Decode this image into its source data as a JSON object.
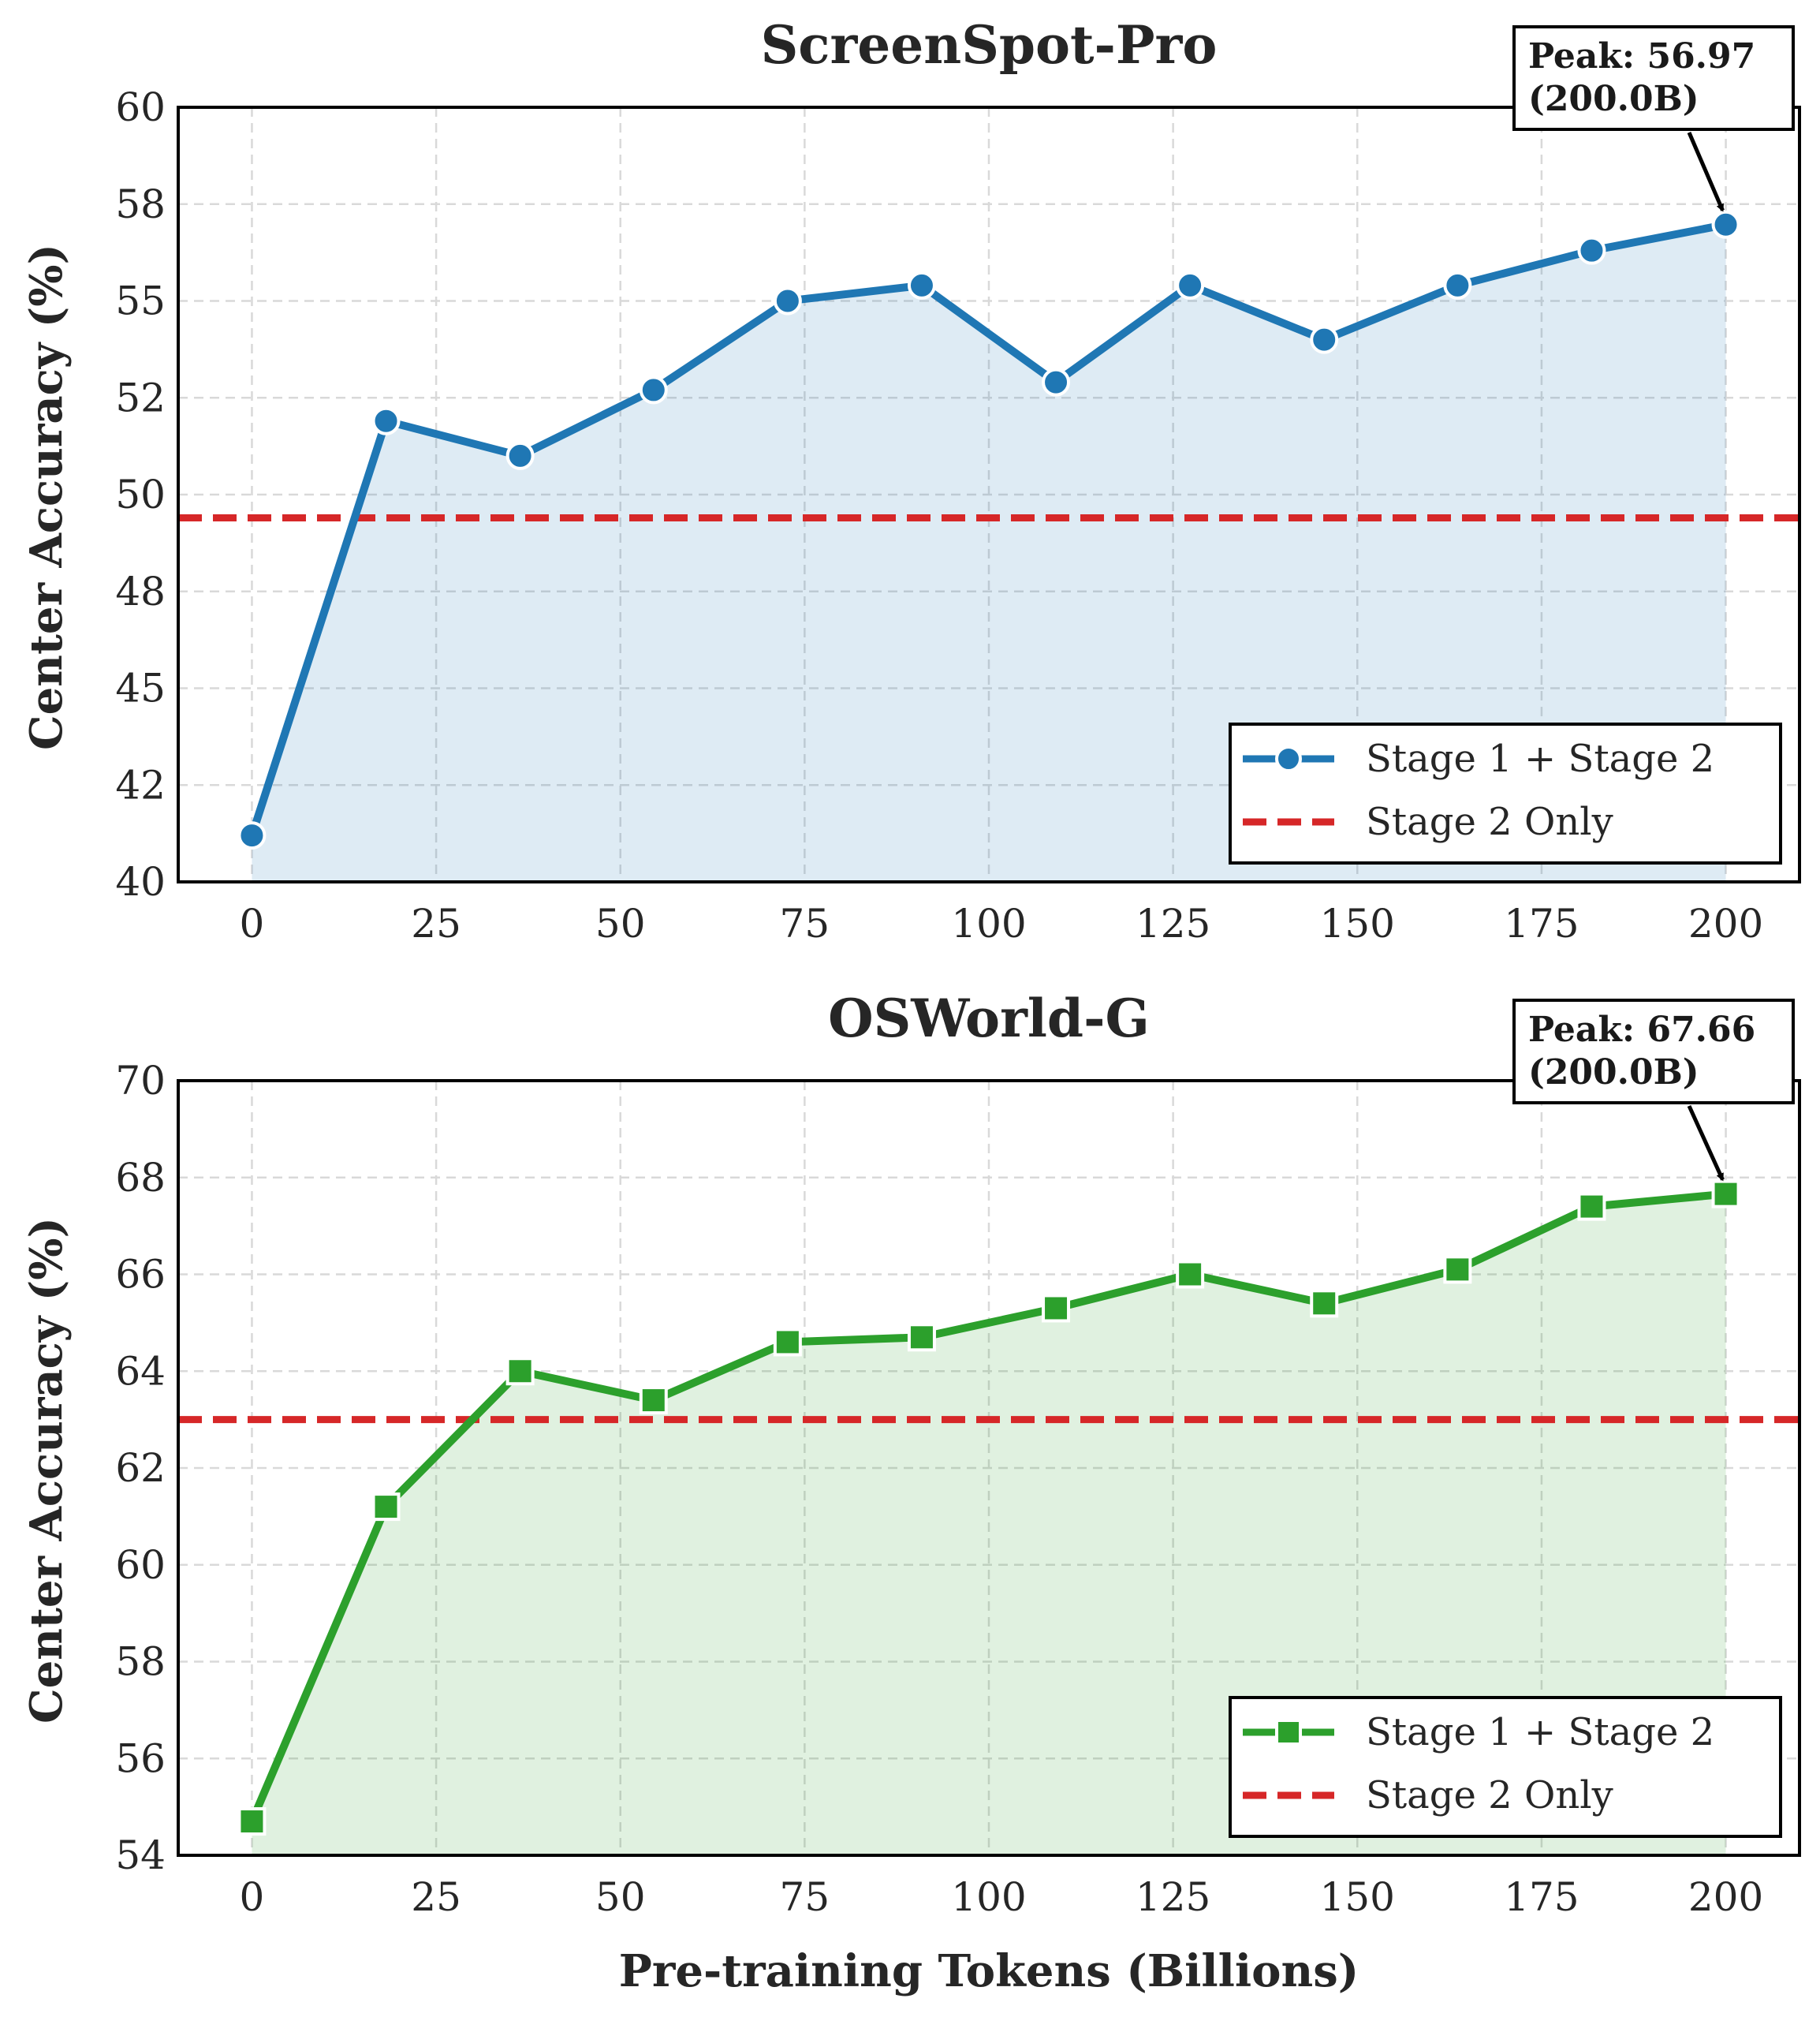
{
  "colors": {
    "series_1": "#1f77b4",
    "series_2": "#2ca02c",
    "baseline": "#d62728",
    "grid": "#d9d9d9",
    "text": "#262626"
  },
  "figure": {
    "xlabel": "Pre-training Tokens (Billions)"
  },
  "legend": {
    "series_label": "Stage 1 + Stage 2",
    "baseline_label": "Stage 2 Only",
    "placement": "lower-right"
  },
  "chart_data": [
    {
      "type": "line",
      "title": "ScreenSpot-Pro",
      "ylabel": "Center Accuracy (%)",
      "xlabel": "Pre-training Tokens (Billions)",
      "xlim": [
        -10,
        210
      ],
      "ylim": [
        40,
        60
      ],
      "x_ticks": [
        0,
        25,
        50,
        75,
        100,
        125,
        150,
        175,
        200
      ],
      "y_ticks": [
        40,
        42.5,
        45,
        47.5,
        50,
        52.5,
        55,
        57.5,
        60
      ],
      "y_tick_labels": [
        "40",
        "42",
        "45",
        "48",
        "50",
        "52",
        "55",
        "58",
        "60"
      ],
      "grid": true,
      "fill_under": true,
      "legend_placement": "lower-right",
      "series": [
        {
          "name": "Stage 1 + Stage 2",
          "marker": "circle",
          "color": "#1f77b4",
          "x": [
            0,
            18.2,
            36.4,
            54.5,
            72.7,
            90.9,
            109.1,
            127.3,
            145.5,
            163.6,
            181.8,
            200
          ],
          "y": [
            41.2,
            51.9,
            51.0,
            52.7,
            55.0,
            55.4,
            52.9,
            55.4,
            54.0,
            55.4,
            56.3,
            56.97
          ]
        }
      ],
      "baseline": {
        "name": "Stage 2 Only",
        "style": "dashed",
        "color": "#d62728",
        "y": 49.4
      },
      "annotation": {
        "line1": "Peak: 56.97",
        "line2": "(200.0B)",
        "x": 200,
        "y": 56.97
      }
    },
    {
      "type": "line",
      "title": "OSWorld-G",
      "ylabel": "Center Accuracy (%)",
      "xlabel": "Pre-training Tokens (Billions)",
      "xlim": [
        -10,
        210
      ],
      "ylim": [
        54,
        70
      ],
      "x_ticks": [
        0,
        25,
        50,
        75,
        100,
        125,
        150,
        175,
        200
      ],
      "y_ticks": [
        54,
        56,
        58,
        60,
        62,
        64,
        66,
        68,
        70
      ],
      "y_tick_labels": [
        "54",
        "56",
        "58",
        "60",
        "62",
        "64",
        "66",
        "68",
        "70"
      ],
      "grid": true,
      "fill_under": true,
      "legend_placement": "lower-right",
      "series": [
        {
          "name": "Stage 1 + Stage 2",
          "marker": "square",
          "color": "#2ca02c",
          "x": [
            0,
            18.2,
            36.4,
            54.5,
            72.7,
            90.9,
            109.1,
            127.3,
            145.5,
            163.6,
            181.8,
            200
          ],
          "y": [
            54.7,
            61.2,
            64.0,
            63.4,
            64.6,
            64.7,
            65.3,
            66.0,
            65.4,
            66.1,
            67.4,
            67.66
          ]
        }
      ],
      "baseline": {
        "name": "Stage 2 Only",
        "style": "dashed",
        "color": "#d62728",
        "y": 63.0
      },
      "annotation": {
        "line1": "Peak: 67.66",
        "line2": "(200.0B)",
        "x": 200,
        "y": 67.66
      }
    }
  ]
}
